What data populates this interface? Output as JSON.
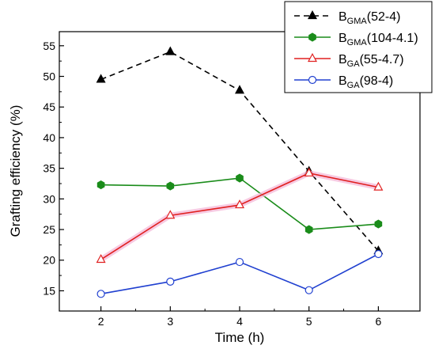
{
  "chart_data": {
    "type": "line",
    "title": "",
    "xlabel": "Time (h)",
    "ylabel": "Grafting efficiency (%)",
    "xlim": [
      1.4,
      6.6
    ],
    "ylim": [
      11.7,
      57.3
    ],
    "x_ticks": [
      2,
      3,
      4,
      5,
      6
    ],
    "y_ticks": [
      15,
      20,
      25,
      30,
      35,
      40,
      45,
      50,
      55
    ],
    "grid": false,
    "legend_position": "top-right",
    "series": [
      {
        "legend_main": "B",
        "legend_sub": "GMA",
        "legend_rest": "(52-4)",
        "color": "#000000",
        "line_style": "dashed",
        "marker": "filled-triangle",
        "x": [
          2,
          3,
          4,
          5,
          6
        ],
        "y": [
          49.5,
          54,
          47.7,
          34.5,
          21.5
        ]
      },
      {
        "legend_main": "B",
        "legend_sub": "GMA",
        "legend_rest": "(104-4.1)",
        "color": "#1a8c1a",
        "line_style": "solid",
        "marker": "filled-hexagon",
        "x": [
          2,
          3,
          4,
          5,
          6
        ],
        "y": [
          32.3,
          32.1,
          33.4,
          25,
          25.9
        ]
      },
      {
        "legend_main": "B",
        "legend_sub": "GA",
        "legend_rest": "(55-4.7)",
        "color": "#e02020",
        "line_style": "solid",
        "marker": "open-triangle",
        "x": [
          2,
          3,
          4,
          5,
          6
        ],
        "y": [
          20.1,
          27.3,
          29,
          34.2,
          31.9
        ]
      },
      {
        "legend_main": "B",
        "legend_sub": "GA",
        "legend_rest": "(98-4)",
        "color": "#2040d0",
        "line_style": "solid",
        "marker": "open-circle",
        "x": [
          2,
          3,
          4,
          5,
          6
        ],
        "y": [
          14.5,
          16.5,
          19.7,
          15.1,
          21
        ]
      }
    ]
  }
}
